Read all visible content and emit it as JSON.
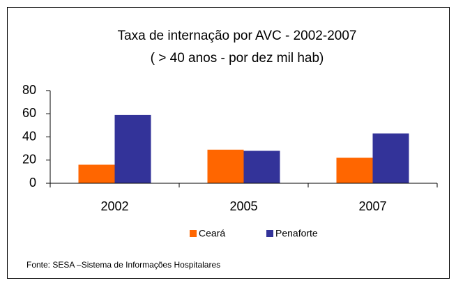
{
  "chart_data": {
    "type": "bar",
    "title": "Taxa de internação por AVC - 2002-2007",
    "subtitle": "( > 40 anos - por dez mil hab)",
    "categories": [
      "2002",
      "2005",
      "2007"
    ],
    "series": [
      {
        "name": "Ceará",
        "color": "#ff6600",
        "values": [
          16,
          29,
          22
        ]
      },
      {
        "name": "Penaforte",
        "color": "#333399",
        "values": [
          59,
          28,
          43
        ]
      }
    ],
    "ylim": [
      0,
      80
    ],
    "yticks": [
      0,
      20,
      40,
      60,
      80
    ],
    "source": "Fonte: SESA –Sistema de Informações Hospitalares"
  }
}
